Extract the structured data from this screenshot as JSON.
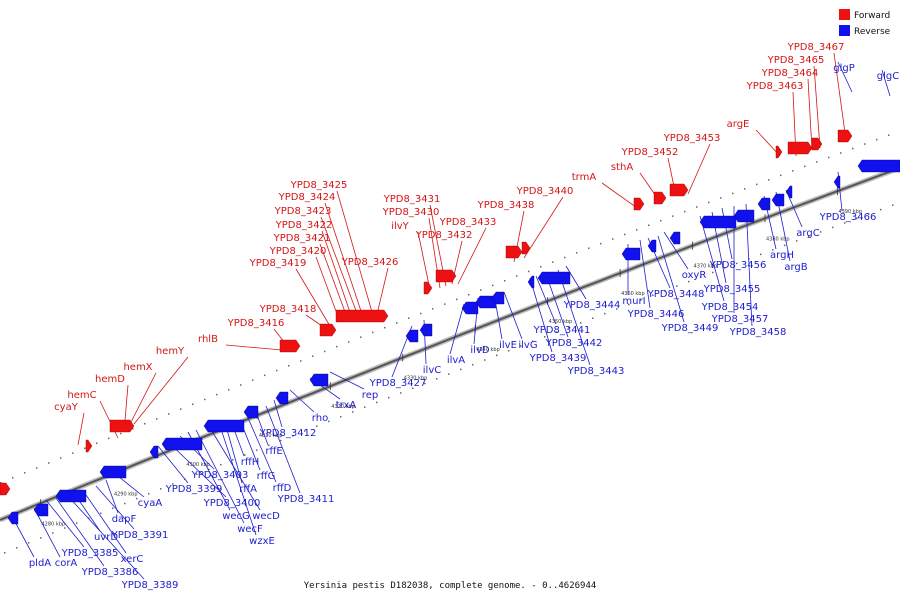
{
  "caption": "Yersinia pestis D182038, complete genome. - 0..4626944",
  "legend": {
    "forward": "Forward",
    "reverse": "Reverse",
    "forward_color": "#ee1111",
    "reverse_color": "#1111ee"
  },
  "ticks": [
    "4280 kbp",
    "4290 kbp",
    "4300 kbp",
    "4310 kbp",
    "4320 kbp",
    "4330 kbp",
    "4340 kbp",
    "4350 kbp",
    "4360 kbp",
    "4370 kbp",
    "4380 kbp",
    "4390 kbp"
  ],
  "forward_labels": [
    "cyaY",
    "hemC",
    "hemD",
    "hemX",
    "hemY",
    "rhlB",
    "YPD8_3416",
    "YPD8_3418",
    "YPD8_3419",
    "YPD8_3420",
    "YPD8_3421",
    "YPD8_3422",
    "YPD8_3423",
    "YPD8_3424",
    "YPD8_3425",
    "YPD8_3426",
    "ilvY",
    "YPD8_3430",
    "YPD8_3431",
    "YPD8_3432",
    "YPD8_3433",
    "YPD8_3438",
    "YPD8_3440",
    "trmA",
    "sthA",
    "YPD8_3452",
    "YPD8_3453",
    "argE",
    "YPD8_3463",
    "YPD8_3464",
    "YPD8_3465",
    "YPD8_3467"
  ],
  "reverse_labels": [
    "pldA",
    "corA",
    "YPD8_3385",
    "YPD8_3386",
    "YPD8_3389",
    "uvrD",
    "xerC",
    "YPD8_3391",
    "dapF",
    "cyaA",
    "YPD8_3399",
    "YPD8_3400",
    "YPD8_3403",
    "wecG",
    "wecF",
    "wecD",
    "wzxE",
    "rffA",
    "rffH",
    "rffG",
    "rffD",
    "rffE",
    "YPD8_3411",
    "YPD8_3412",
    "rho",
    "trxA",
    "rep",
    "YPD8_3427",
    "ilvC",
    "ilvA",
    "ilvD",
    "ilvE",
    "ilvG",
    "YPD8_3439",
    "YPD8_3441",
    "YPD8_3442",
    "YPD8_3443",
    "YPD8_3444",
    "murI",
    "YPD8_3446",
    "YPD8_3448",
    "YPD8_3449",
    "oxyR",
    "YPD8_3454",
    "YPD8_3455",
    "YPD8_3456",
    "YPD8_3457",
    "YPD8_3458",
    "argH",
    "argB",
    "argC",
    "YPD8_3466",
    "glgP",
    "glgC"
  ]
}
